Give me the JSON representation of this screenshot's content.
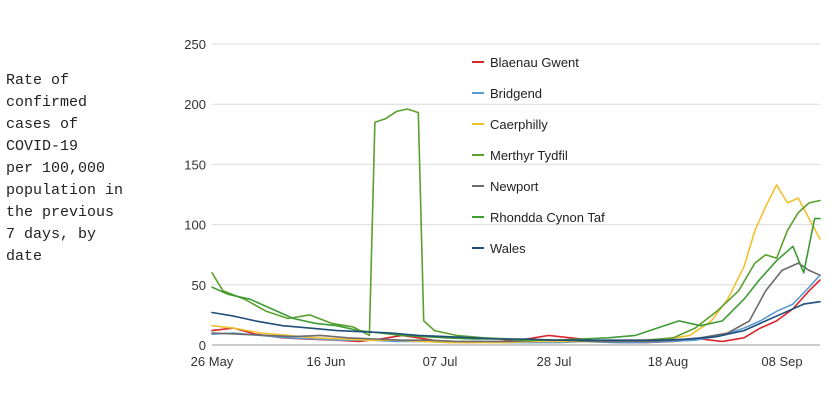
{
  "chart_data": {
    "type": "line",
    "ylabel": "Rate of\nconfirmed\ncases of\nCOVID-19\nper 100,000\npopulation in\nthe previous\n7 days, by\ndate",
    "xlabel": "",
    "ylim": [
      0,
      250
    ],
    "yticks": [
      0,
      50,
      100,
      150,
      200,
      250
    ],
    "xlim": [
      "2020-05-26",
      "2020-09-15"
    ],
    "xticks": [
      {
        "date": "2020-05-26",
        "label": "26 May"
      },
      {
        "date": "2020-06-16",
        "label": "16 Jun"
      },
      {
        "date": "2020-07-07",
        "label": "07 Jul"
      },
      {
        "date": "2020-07-28",
        "label": "28 Jul"
      },
      {
        "date": "2020-08-18",
        "label": "18 Aug"
      },
      {
        "date": "2020-09-08",
        "label": "08 Sep"
      }
    ],
    "grid": "horizontal",
    "legend_position": "top-center",
    "series": [
      {
        "name": "Blaenau Gwent",
        "color": "#d9262c",
        "points": [
          [
            "2020-05-26",
            12
          ],
          [
            "2020-05-30",
            14
          ],
          [
            "2020-06-03",
            9
          ],
          [
            "2020-06-08",
            6
          ],
          [
            "2020-06-12",
            5
          ],
          [
            "2020-06-18",
            4
          ],
          [
            "2020-06-22",
            3
          ],
          [
            "2020-06-26",
            5
          ],
          [
            "2020-06-30",
            8
          ],
          [
            "2020-07-03",
            6
          ],
          [
            "2020-07-07",
            3
          ],
          [
            "2020-07-12",
            2
          ],
          [
            "2020-07-18",
            3
          ],
          [
            "2020-07-23",
            5
          ],
          [
            "2020-07-27",
            8
          ],
          [
            "2020-07-31",
            6
          ],
          [
            "2020-08-04",
            4
          ],
          [
            "2020-08-09",
            2
          ],
          [
            "2020-08-14",
            2
          ],
          [
            "2020-08-19",
            3
          ],
          [
            "2020-08-24",
            5
          ],
          [
            "2020-08-28",
            3
          ],
          [
            "2020-09-01",
            6
          ],
          [
            "2020-09-04",
            14
          ],
          [
            "2020-09-07",
            20
          ],
          [
            "2020-09-10",
            30
          ],
          [
            "2020-09-13",
            45
          ],
          [
            "2020-09-15",
            54
          ]
        ]
      },
      {
        "name": "Bridgend",
        "color": "#5b9bd5",
        "points": [
          [
            "2020-05-26",
            9
          ],
          [
            "2020-05-30",
            10
          ],
          [
            "2020-06-04",
            8
          ],
          [
            "2020-06-09",
            6
          ],
          [
            "2020-06-14",
            5
          ],
          [
            "2020-06-19",
            4
          ],
          [
            "2020-06-24",
            4
          ],
          [
            "2020-06-29",
            3
          ],
          [
            "2020-07-04",
            3
          ],
          [
            "2020-07-09",
            2
          ],
          [
            "2020-07-14",
            3
          ],
          [
            "2020-07-19",
            2
          ],
          [
            "2020-07-24",
            2
          ],
          [
            "2020-07-29",
            2
          ],
          [
            "2020-08-03",
            3
          ],
          [
            "2020-08-08",
            2
          ],
          [
            "2020-08-13",
            2
          ],
          [
            "2020-08-18",
            3
          ],
          [
            "2020-08-23",
            4
          ],
          [
            "2020-08-28",
            8
          ],
          [
            "2020-09-01",
            14
          ],
          [
            "2020-09-04",
            20
          ],
          [
            "2020-09-07",
            28
          ],
          [
            "2020-09-10",
            34
          ],
          [
            "2020-09-13",
            48
          ],
          [
            "2020-09-15",
            58
          ]
        ]
      },
      {
        "name": "Caerphilly",
        "color": "#f2c12e",
        "points": [
          [
            "2020-05-26",
            16
          ],
          [
            "2020-05-30",
            14
          ],
          [
            "2020-06-04",
            10
          ],
          [
            "2020-06-09",
            8
          ],
          [
            "2020-06-14",
            6
          ],
          [
            "2020-06-19",
            5
          ],
          [
            "2020-06-24",
            4
          ],
          [
            "2020-06-29",
            4
          ],
          [
            "2020-07-04",
            3
          ],
          [
            "2020-07-09",
            2
          ],
          [
            "2020-07-14",
            2
          ],
          [
            "2020-07-19",
            2
          ],
          [
            "2020-07-24",
            3
          ],
          [
            "2020-07-29",
            3
          ],
          [
            "2020-08-03",
            3
          ],
          [
            "2020-08-08",
            4
          ],
          [
            "2020-08-13",
            4
          ],
          [
            "2020-08-18",
            5
          ],
          [
            "2020-08-22",
            8
          ],
          [
            "2020-08-26",
            20
          ],
          [
            "2020-08-29",
            38
          ],
          [
            "2020-09-01",
            65
          ],
          [
            "2020-09-03",
            95
          ],
          [
            "2020-09-05",
            115
          ],
          [
            "2020-09-07",
            133
          ],
          [
            "2020-09-09",
            118
          ],
          [
            "2020-09-11",
            122
          ],
          [
            "2020-09-13",
            105
          ],
          [
            "2020-09-15",
            88
          ]
        ]
      },
      {
        "name": "Merthyr Tydfil",
        "color": "#5aa02c",
        "points": [
          [
            "2020-05-26",
            60
          ],
          [
            "2020-05-28",
            45
          ],
          [
            "2020-06-01",
            38
          ],
          [
            "2020-06-05",
            28
          ],
          [
            "2020-06-09",
            22
          ],
          [
            "2020-06-13",
            25
          ],
          [
            "2020-06-17",
            18
          ],
          [
            "2020-06-21",
            15
          ],
          [
            "2020-06-24",
            8
          ],
          [
            "2020-06-25",
            185
          ],
          [
            "2020-06-27",
            188
          ],
          [
            "2020-06-29",
            194
          ],
          [
            "2020-07-01",
            196
          ],
          [
            "2020-07-03",
            193
          ],
          [
            "2020-07-04",
            20
          ],
          [
            "2020-07-06",
            12
          ],
          [
            "2020-07-10",
            8
          ],
          [
            "2020-07-15",
            6
          ],
          [
            "2020-07-20",
            5
          ],
          [
            "2020-07-25",
            4
          ],
          [
            "2020-07-30",
            4
          ],
          [
            "2020-08-04",
            3
          ],
          [
            "2020-08-09",
            3
          ],
          [
            "2020-08-14",
            4
          ],
          [
            "2020-08-19",
            6
          ],
          [
            "2020-08-23",
            14
          ],
          [
            "2020-08-27",
            28
          ],
          [
            "2020-08-31",
            45
          ],
          [
            "2020-09-03",
            68
          ],
          [
            "2020-09-05",
            75
          ],
          [
            "2020-09-07",
            72
          ],
          [
            "2020-09-09",
            95
          ],
          [
            "2020-09-11",
            110
          ],
          [
            "2020-09-13",
            118
          ],
          [
            "2020-09-15",
            120
          ]
        ]
      },
      {
        "name": "Newport",
        "color": "#6b6b6b",
        "points": [
          [
            "2020-05-26",
            10
          ],
          [
            "2020-05-31",
            9
          ],
          [
            "2020-06-05",
            8
          ],
          [
            "2020-06-10",
            7
          ],
          [
            "2020-06-15",
            8
          ],
          [
            "2020-06-20",
            6
          ],
          [
            "2020-06-25",
            5
          ],
          [
            "2020-06-30",
            4
          ],
          [
            "2020-07-05",
            4
          ],
          [
            "2020-07-10",
            3
          ],
          [
            "2020-07-15",
            3
          ],
          [
            "2020-07-20",
            3
          ],
          [
            "2020-07-25",
            4
          ],
          [
            "2020-07-30",
            4
          ],
          [
            "2020-08-04",
            3
          ],
          [
            "2020-08-09",
            3
          ],
          [
            "2020-08-14",
            3
          ],
          [
            "2020-08-19",
            4
          ],
          [
            "2020-08-24",
            6
          ],
          [
            "2020-08-29",
            10
          ],
          [
            "2020-09-02",
            20
          ],
          [
            "2020-09-05",
            45
          ],
          [
            "2020-09-08",
            62
          ],
          [
            "2020-09-11",
            68
          ],
          [
            "2020-09-13",
            62
          ],
          [
            "2020-09-15",
            58
          ]
        ]
      },
      {
        "name": "Rhondda Cynon Taf",
        "color": "#3f9b35",
        "points": [
          [
            "2020-05-26",
            48
          ],
          [
            "2020-05-29",
            42
          ],
          [
            "2020-06-02",
            38
          ],
          [
            "2020-06-06",
            30
          ],
          [
            "2020-06-10",
            22
          ],
          [
            "2020-06-14",
            18
          ],
          [
            "2020-06-18",
            16
          ],
          [
            "2020-06-22",
            12
          ],
          [
            "2020-06-26",
            10
          ],
          [
            "2020-06-30",
            8
          ],
          [
            "2020-07-04",
            7
          ],
          [
            "2020-07-08",
            6
          ],
          [
            "2020-07-13",
            5
          ],
          [
            "2020-07-18",
            5
          ],
          [
            "2020-07-23",
            4
          ],
          [
            "2020-07-28",
            4
          ],
          [
            "2020-08-02",
            5
          ],
          [
            "2020-08-07",
            6
          ],
          [
            "2020-08-12",
            8
          ],
          [
            "2020-08-16",
            14
          ],
          [
            "2020-08-20",
            20
          ],
          [
            "2020-08-24",
            16
          ],
          [
            "2020-08-28",
            20
          ],
          [
            "2020-09-01",
            38
          ],
          [
            "2020-09-04",
            55
          ],
          [
            "2020-09-07",
            70
          ],
          [
            "2020-09-10",
            82
          ],
          [
            "2020-09-12",
            60
          ],
          [
            "2020-09-14",
            105
          ],
          [
            "2020-09-15",
            105
          ]
        ]
      },
      {
        "name": "Wales",
        "color": "#1f4e79",
        "points": [
          [
            "2020-05-26",
            27
          ],
          [
            "2020-05-30",
            24
          ],
          [
            "2020-06-03",
            20
          ],
          [
            "2020-06-08",
            16
          ],
          [
            "2020-06-13",
            14
          ],
          [
            "2020-06-18",
            12
          ],
          [
            "2020-06-23",
            11
          ],
          [
            "2020-06-28",
            10
          ],
          [
            "2020-07-03",
            8
          ],
          [
            "2020-07-08",
            7
          ],
          [
            "2020-07-13",
            6
          ],
          [
            "2020-07-18",
            5
          ],
          [
            "2020-07-23",
            5
          ],
          [
            "2020-07-28",
            4
          ],
          [
            "2020-08-02",
            4
          ],
          [
            "2020-08-07",
            4
          ],
          [
            "2020-08-12",
            4
          ],
          [
            "2020-08-17",
            4
          ],
          [
            "2020-08-22",
            5
          ],
          [
            "2020-08-27",
            7
          ],
          [
            "2020-09-01",
            12
          ],
          [
            "2020-09-05",
            20
          ],
          [
            "2020-09-09",
            28
          ],
          [
            "2020-09-12",
            34
          ],
          [
            "2020-09-15",
            36
          ]
        ]
      }
    ]
  }
}
